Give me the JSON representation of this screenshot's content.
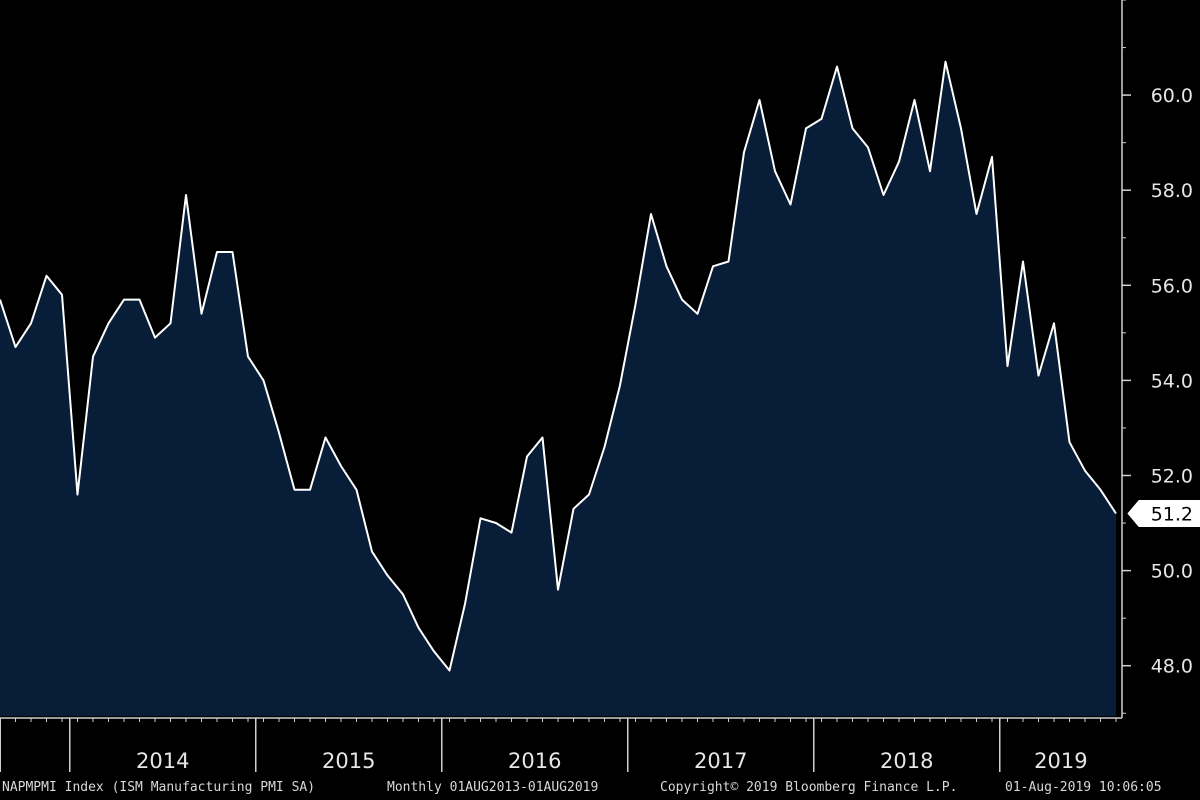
{
  "chart_data": {
    "type": "area",
    "x_start": "2013-08",
    "y": [
      55.7,
      54.7,
      55.2,
      56.2,
      55.8,
      51.6,
      54.5,
      55.2,
      55.7,
      55.7,
      54.9,
      55.2,
      57.9,
      55.4,
      56.7,
      56.7,
      54.5,
      54.0,
      52.9,
      51.7,
      51.7,
      52.8,
      52.2,
      51.7,
      50.4,
      49.9,
      49.5,
      48.8,
      48.3,
      47.9,
      49.3,
      51.1,
      51.0,
      50.8,
      52.4,
      52.8,
      49.6,
      51.3,
      51.6,
      52.6,
      53.9,
      55.6,
      57.5,
      56.4,
      55.7,
      55.4,
      56.4,
      56.5,
      58.8,
      59.9,
      58.4,
      57.7,
      59.3,
      59.5,
      60.6,
      59.3,
      58.9,
      57.9,
      58.6,
      59.9,
      58.4,
      60.7,
      59.3,
      57.5,
      58.7,
      54.3,
      56.5,
      54.1,
      55.2,
      52.7,
      52.1,
      51.7,
      51.2
    ],
    "y_ticks": [
      "48.0",
      "50.0",
      "52.0",
      "54.0",
      "56.0",
      "58.0",
      "60.0"
    ],
    "ylim": [
      46.9,
      62.0
    ],
    "x_labels": [
      "2014",
      "2015",
      "2016",
      "2017",
      "2018",
      "2019"
    ],
    "last_value_label": "51.2",
    "line_color": "#ffffff",
    "fill_color": "#081d38",
    "background": "#000000",
    "grid": false
  },
  "footer": {
    "ticker": "NAPMPMI Index (ISM Manufacturing PMI SA)",
    "range": "Monthly 01AUG2013-01AUG2019",
    "copyright": "Copyright© 2019 Bloomberg Finance L.P.",
    "timestamp": "01-Aug-2019 10:06:05"
  }
}
